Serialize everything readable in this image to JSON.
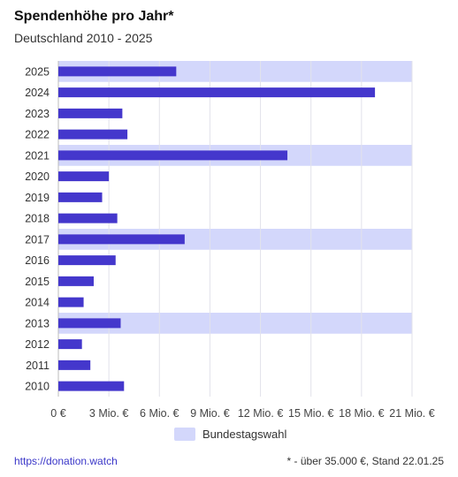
{
  "header": {
    "title": "Spendenhöhe pro Jahr*",
    "subtitle": "Deutschland 2010 - 2025"
  },
  "legend": {
    "label": "Bundestagswahl",
    "color": "#d3d7fb"
  },
  "footer": {
    "link": "https://donation.watch",
    "note": "* - über 35.000 €, Stand 22.01.25"
  },
  "colors": {
    "bar": "#4437cc",
    "election_band": "#d3d7fb",
    "grid": "#e2e2ea",
    "link": "#3a36c8"
  },
  "chart_data": {
    "type": "bar",
    "orientation": "horizontal",
    "categories": [
      "2025",
      "2024",
      "2023",
      "2022",
      "2021",
      "2020",
      "2019",
      "2018",
      "2017",
      "2016",
      "2015",
      "2014",
      "2013",
      "2012",
      "2011",
      "2010"
    ],
    "values": [
      7.0,
      18.8,
      3.8,
      4.1,
      13.6,
      3.0,
      2.6,
      3.5,
      7.5,
      3.4,
      2.1,
      1.5,
      3.7,
      1.4,
      1.9,
      3.9
    ],
    "unit": "Mio. €",
    "election_years": [
      "2025",
      "2021",
      "2017",
      "2013"
    ],
    "xlim": [
      0,
      21
    ],
    "xticks": [
      {
        "value": 0,
        "label": "0 €"
      },
      {
        "value": 3,
        "label": "3 Mio. €"
      },
      {
        "value": 6,
        "label": "6 Mio. €"
      },
      {
        "value": 9,
        "label": "9 Mio. €"
      },
      {
        "value": 12,
        "label": "12 Mio. €"
      },
      {
        "value": 15,
        "label": "15 Mio. €"
      },
      {
        "value": 18,
        "label": "18 Mio. €"
      },
      {
        "value": 21,
        "label": "21 Mio. €"
      }
    ],
    "grid": true,
    "legend_position": "bottom"
  }
}
